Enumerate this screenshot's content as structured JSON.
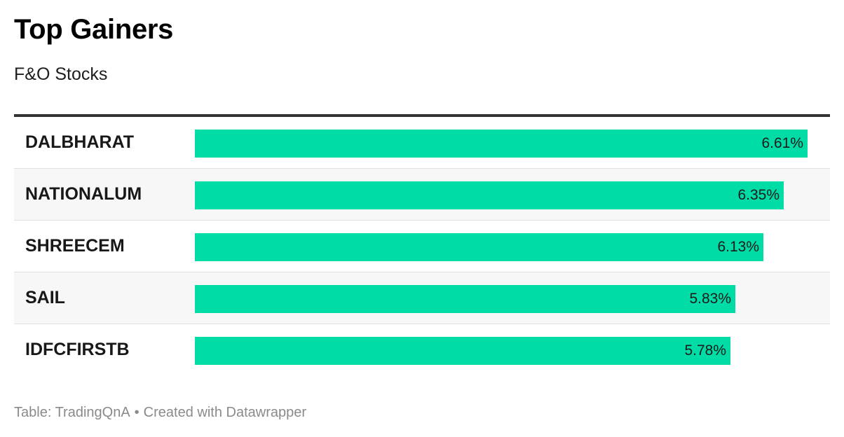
{
  "header": {
    "title": "Top Gainers",
    "subtitle": "F&O Stocks"
  },
  "footer": {
    "source": "Table: TradingQnA",
    "separator": "•",
    "credit": "Created with Datawrapper"
  },
  "colors": {
    "bar": "#00dca6",
    "rule": "#333333",
    "alt_row": "#f7f7f7"
  },
  "chart_data": {
    "type": "bar",
    "orientation": "horizontal",
    "title": "Top Gainers",
    "subtitle": "F&O Stocks",
    "categories": [
      "DALBHARAT",
      "NATIONALUM",
      "SHREECEM",
      "SAIL",
      "IDFCFIRSTB"
    ],
    "values": [
      6.61,
      6.35,
      6.13,
      5.83,
      5.78
    ],
    "value_labels": [
      "6.61%",
      "6.35%",
      "6.13%",
      "5.83%",
      "5.78%"
    ],
    "unit": "%",
    "xlim": [
      0,
      6.61
    ],
    "grid": false,
    "legend": "none"
  }
}
